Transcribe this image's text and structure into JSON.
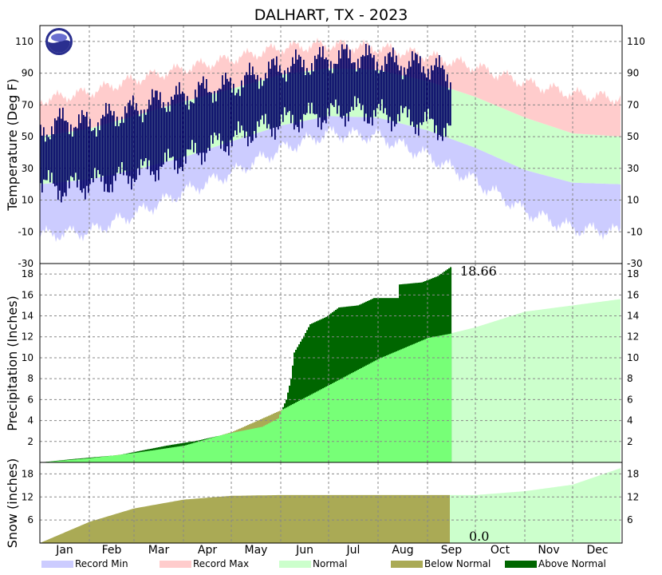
{
  "chart_data": {
    "type": "climate-summary",
    "title": "DALHART, TX - 2023",
    "months": [
      "Jan",
      "Feb",
      "Mar",
      "Apr",
      "May",
      "Jun",
      "Jul",
      "Aug",
      "Sep",
      "Oct",
      "Nov",
      "Dec"
    ],
    "month_start_days": [
      1,
      32,
      60,
      91,
      121,
      152,
      182,
      213,
      244,
      274,
      305,
      335
    ],
    "days_in_year": 365,
    "last_observed_day": 258,
    "legend": [
      "Record Min",
      "Record Max",
      "Normal",
      "Below Normal",
      "Above Normal"
    ],
    "colors": {
      "record_min": "#ccccff",
      "record_max": "#ffcccc",
      "normal": "#ccffcc",
      "observed_temp": "#000066",
      "below_normal": "#aaaa55",
      "above_normal": "#006600",
      "normal_to_date": "#77ff77"
    },
    "temperature": {
      "ylabel": "Temperature (Deg F)",
      "ylim": [
        -30,
        120
      ],
      "ticks": [
        -30,
        -10,
        10,
        30,
        50,
        70,
        90,
        110
      ],
      "normal_high": [
        [
          1,
          50
        ],
        [
          32,
          55
        ],
        [
          60,
          63
        ],
        [
          91,
          72
        ],
        [
          121,
          80
        ],
        [
          152,
          89
        ],
        [
          182,
          93
        ],
        [
          213,
          92
        ],
        [
          244,
          85
        ],
        [
          274,
          75
        ],
        [
          305,
          62
        ],
        [
          335,
          52
        ],
        [
          365,
          50
        ]
      ],
      "normal_low": [
        [
          1,
          20
        ],
        [
          32,
          23
        ],
        [
          60,
          29
        ],
        [
          91,
          37
        ],
        [
          121,
          47
        ],
        [
          152,
          57
        ],
        [
          182,
          63
        ],
        [
          213,
          62
        ],
        [
          244,
          54
        ],
        [
          274,
          43
        ],
        [
          305,
          29
        ],
        [
          335,
          21
        ],
        [
          365,
          20
        ]
      ],
      "record_high": [
        [
          1,
          73
        ],
        [
          32,
          78
        ],
        [
          60,
          86
        ],
        [
          91,
          93
        ],
        [
          121,
          99
        ],
        [
          152,
          106
        ],
        [
          182,
          108
        ],
        [
          213,
          106
        ],
        [
          244,
          101
        ],
        [
          274,
          94
        ],
        [
          305,
          84
        ],
        [
          335,
          77
        ],
        [
          365,
          74
        ]
      ],
      "record_low": [
        [
          1,
          -12
        ],
        [
          32,
          -10
        ],
        [
          60,
          1
        ],
        [
          91,
          15
        ],
        [
          121,
          27
        ],
        [
          152,
          42
        ],
        [
          182,
          52
        ],
        [
          213,
          50
        ],
        [
          244,
          38
        ],
        [
          274,
          22
        ],
        [
          305,
          3
        ],
        [
          335,
          -8
        ],
        [
          365,
          -10
        ]
      ],
      "observed_high": [
        [
          1,
          53
        ],
        [
          15,
          60
        ],
        [
          32,
          58
        ],
        [
          45,
          63
        ],
        [
          60,
          67
        ],
        [
          75,
          73
        ],
        [
          91,
          75
        ],
        [
          105,
          80
        ],
        [
          121,
          82
        ],
        [
          135,
          88
        ],
        [
          152,
          94
        ],
        [
          166,
          96
        ],
        [
          182,
          99
        ],
        [
          196,
          101
        ],
        [
          213,
          98
        ],
        [
          228,
          96
        ],
        [
          244,
          95
        ],
        [
          258,
          88
        ]
      ],
      "observed_low": [
        [
          1,
          21
        ],
        [
          15,
          17
        ],
        [
          32,
          21
        ],
        [
          45,
          22
        ],
        [
          60,
          27
        ],
        [
          75,
          31
        ],
        [
          91,
          36
        ],
        [
          105,
          43
        ],
        [
          121,
          48
        ],
        [
          135,
          54
        ],
        [
          152,
          59
        ],
        [
          166,
          62
        ],
        [
          182,
          64
        ],
        [
          196,
          67
        ],
        [
          213,
          64
        ],
        [
          228,
          62
        ],
        [
          244,
          58
        ],
        [
          258,
          53
        ]
      ]
    },
    "precipitation": {
      "ylabel": "Precipitation (Inches)",
      "ylim": [
        0,
        19
      ],
      "ticks": [
        2,
        4,
        6,
        8,
        10,
        12,
        14,
        16,
        18
      ],
      "final_total": "18.66",
      "observed_cumulative": [
        [
          1,
          0.0
        ],
        [
          20,
          0.3
        ],
        [
          50,
          0.7
        ],
        [
          80,
          1.6
        ],
        [
          100,
          2.1
        ],
        [
          120,
          2.8
        ],
        [
          140,
          3.4
        ],
        [
          150,
          4.2
        ],
        [
          155,
          6.0
        ],
        [
          158,
          8.0
        ],
        [
          160,
          10.5
        ],
        [
          165,
          11.8
        ],
        [
          170,
          13.2
        ],
        [
          180,
          13.9
        ],
        [
          188,
          14.8
        ],
        [
          200,
          15.0
        ],
        [
          210,
          15.7
        ],
        [
          225,
          15.7
        ],
        [
          226,
          17.0
        ],
        [
          240,
          17.2
        ],
        [
          250,
          17.8
        ],
        [
          258,
          18.66
        ]
      ],
      "normal_cumulative": [
        [
          1,
          0.0
        ],
        [
          32,
          0.4
        ],
        [
          60,
          0.9
        ],
        [
          91,
          1.6
        ],
        [
          121,
          2.9
        ],
        [
          152,
          5.0
        ],
        [
          182,
          7.4
        ],
        [
          213,
          9.9
        ],
        [
          244,
          11.9
        ],
        [
          258,
          12.3
        ],
        [
          274,
          12.9
        ],
        [
          305,
          14.4
        ],
        [
          335,
          15.0
        ],
        [
          365,
          15.6
        ]
      ]
    },
    "snow": {
      "ylabel": "Snow (inches)",
      "ylim": [
        0,
        21
      ],
      "ticks": [
        6,
        12,
        18
      ],
      "season_total": "0.0",
      "normal_cumulative": [
        [
          1,
          0.0
        ],
        [
          32,
          5.5
        ],
        [
          60,
          9.0
        ],
        [
          91,
          11.3
        ],
        [
          121,
          12.3
        ],
        [
          152,
          12.5
        ],
        [
          258,
          12.5
        ],
        [
          274,
          12.5
        ],
        [
          305,
          13.5
        ],
        [
          335,
          15.2
        ],
        [
          365,
          19.5
        ]
      ]
    }
  }
}
